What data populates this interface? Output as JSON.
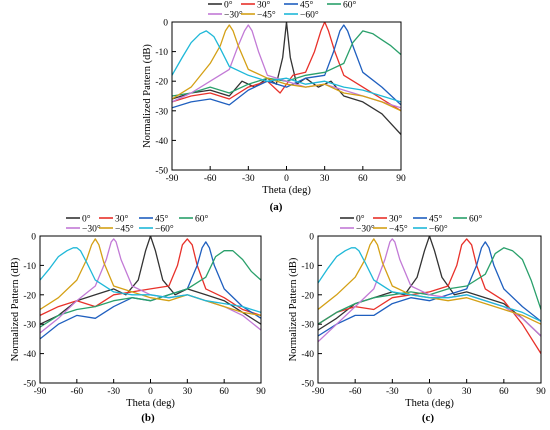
{
  "chart_data": [
    {
      "type": "line",
      "caption": "(a)",
      "xlabel": "Theta (deg)",
      "ylabel": "Normalized Pattern (dB)",
      "xlim": [
        -90,
        90
      ],
      "ylim": [
        -50,
        0
      ],
      "xticks": [
        -90,
        -60,
        -30,
        0,
        30,
        60,
        90
      ],
      "yticks": [
        0,
        -10,
        -20,
        -30,
        -40,
        -50
      ],
      "grid": false,
      "legend_position": "top-right",
      "series": [
        {
          "name": "0°",
          "color": "#333333",
          "x": [
            -90,
            -75,
            -60,
            -45,
            -35,
            -25,
            -15,
            -8,
            -3,
            0,
            3,
            8,
            15,
            25,
            35,
            45,
            60,
            75,
            90
          ],
          "y": [
            -26,
            -24,
            -23,
            -25,
            -20,
            -22,
            -19,
            -21,
            -12,
            0,
            -12,
            -21,
            -19,
            -22,
            -20,
            -25,
            -27,
            -31,
            -38
          ]
        },
        {
          "name": "30°",
          "color": "#e8312a",
          "x": [
            -90,
            -75,
            -60,
            -45,
            -30,
            -15,
            -5,
            5,
            15,
            22,
            27,
            30,
            33,
            38,
            45,
            60,
            75,
            90
          ],
          "y": [
            -27,
            -25,
            -24,
            -26,
            -22,
            -20,
            -24,
            -18,
            -17,
            -10,
            -3,
            0,
            -3,
            -10,
            -18,
            -22,
            -26,
            -30
          ]
        },
        {
          "name": "45°",
          "color": "#1f5fbf",
          "x": [
            -90,
            -75,
            -60,
            -45,
            -30,
            -15,
            0,
            15,
            30,
            37,
            42,
            45,
            48,
            53,
            60,
            75,
            90
          ],
          "y": [
            -29,
            -27,
            -26,
            -28,
            -23,
            -20,
            -22,
            -19,
            -18,
            -10,
            -3,
            -1,
            -3,
            -9,
            -17,
            -22,
            -28
          ]
        },
        {
          "name": "60°",
          "color": "#2aa06b",
          "x": [
            -90,
            -75,
            -60,
            -45,
            -30,
            -15,
            0,
            15,
            30,
            45,
            52,
            60,
            68,
            75,
            82,
            90
          ],
          "y": [
            -25,
            -24,
            -22,
            -24,
            -21,
            -19,
            -20,
            -18,
            -17,
            -14,
            -7,
            -3,
            -4,
            -6,
            -8,
            -11
          ]
        },
        {
          "name": "−30°",
          "color": "#c27ad6",
          "x": [
            -90,
            -75,
            -60,
            -45,
            -38,
            -33,
            -30,
            -27,
            -22,
            -15,
            0,
            15,
            30,
            45,
            60,
            75,
            90
          ],
          "y": [
            -27,
            -24,
            -20,
            -16,
            -8,
            -3,
            -1,
            -3,
            -10,
            -18,
            -20,
            -22,
            -21,
            -23,
            -25,
            -27,
            -29
          ]
        },
        {
          "name": "−45°",
          "color": "#d4a015",
          "x": [
            -90,
            -75,
            -60,
            -52,
            -48,
            -45,
            -42,
            -38,
            -30,
            -15,
            0,
            15,
            30,
            45,
            60,
            75,
            90
          ],
          "y": [
            -26,
            -22,
            -14,
            -8,
            -3,
            -1,
            -3,
            -8,
            -16,
            -19,
            -21,
            -22,
            -21,
            -24,
            -25,
            -27,
            -30
          ]
        },
        {
          "name": "−60°",
          "color": "#1fb8d8",
          "x": [
            -90,
            -82,
            -75,
            -68,
            -63,
            -60,
            -57,
            -52,
            -45,
            -30,
            -15,
            0,
            15,
            30,
            45,
            60,
            75,
            90
          ],
          "y": [
            -18,
            -12,
            -7,
            -4,
            -3,
            -4,
            -5,
            -9,
            -15,
            -18,
            -20,
            -19,
            -21,
            -20,
            -22,
            -23,
            -25,
            -27
          ]
        }
      ]
    },
    {
      "type": "line",
      "caption": "(b)",
      "xlabel": "Theta (deg)",
      "ylabel": "Normalized Pattern (dB)",
      "xlim": [
        -90,
        90
      ],
      "ylim": [
        -50,
        0
      ],
      "xticks": [
        -90,
        -60,
        -30,
        0,
        30,
        60,
        90
      ],
      "yticks": [
        0,
        -10,
        -20,
        -30,
        -40,
        -50
      ],
      "grid": false,
      "legend_position": "top-right",
      "series": [
        {
          "name": "0°",
          "color": "#333333",
          "x": [
            -90,
            -75,
            -60,
            -45,
            -30,
            -20,
            -10,
            -4,
            0,
            4,
            10,
            20,
            30,
            45,
            60,
            75,
            90
          ],
          "y": [
            -30,
            -27,
            -22,
            -20,
            -18,
            -20,
            -15,
            -5,
            0,
            -5,
            -15,
            -20,
            -18,
            -20,
            -22,
            -26,
            -30
          ]
        },
        {
          "name": "30°",
          "color": "#e8312a",
          "x": [
            -90,
            -75,
            -60,
            -45,
            -30,
            -15,
            0,
            15,
            22,
            26,
            30,
            34,
            38,
            45,
            60,
            75,
            90
          ],
          "y": [
            -27,
            -24,
            -22,
            -24,
            -20,
            -19,
            -18,
            -17,
            -10,
            -3,
            -1,
            -3,
            -10,
            -18,
            -21,
            -25,
            -27
          ]
        },
        {
          "name": "45°",
          "color": "#1f5fbf",
          "x": [
            -90,
            -75,
            -60,
            -45,
            -30,
            -15,
            0,
            15,
            30,
            38,
            42,
            45,
            48,
            52,
            60,
            75,
            90
          ],
          "y": [
            -35,
            -30,
            -27,
            -28,
            -24,
            -21,
            -22,
            -20,
            -18,
            -10,
            -4,
            -2,
            -4,
            -10,
            -18,
            -24,
            -28
          ]
        },
        {
          "name": "60°",
          "color": "#2aa06b",
          "x": [
            -90,
            -75,
            -60,
            -45,
            -30,
            -15,
            0,
            15,
            30,
            45,
            53,
            60,
            67,
            75,
            82,
            90
          ],
          "y": [
            -31,
            -27,
            -25,
            -24,
            -22,
            -21,
            -22,
            -20,
            -18,
            -14,
            -7,
            -5,
            -5,
            -8,
            -12,
            -15
          ]
        },
        {
          "name": "−30°",
          "color": "#c27ad6",
          "x": [
            -90,
            -75,
            -60,
            -45,
            -36,
            -32,
            -30,
            -28,
            -24,
            -15,
            0,
            15,
            30,
            45,
            60,
            75,
            90
          ],
          "y": [
            -33,
            -28,
            -22,
            -17,
            -8,
            -2,
            -1,
            -2,
            -8,
            -17,
            -20,
            -21,
            -20,
            -22,
            -24,
            -27,
            -32
          ]
        },
        {
          "name": "−45°",
          "color": "#d4a015",
          "x": [
            -90,
            -75,
            -60,
            -52,
            -48,
            -45,
            -42,
            -38,
            -30,
            -15,
            0,
            15,
            30,
            45,
            60,
            75,
            90
          ],
          "y": [
            -25,
            -21,
            -15,
            -8,
            -3,
            -1,
            -3,
            -9,
            -17,
            -19,
            -21,
            -22,
            -20,
            -22,
            -24,
            -26,
            -27
          ]
        },
        {
          "name": "−60°",
          "color": "#1fb8d8",
          "x": [
            -90,
            -82,
            -75,
            -68,
            -63,
            -60,
            -57,
            -52,
            -45,
            -30,
            -15,
            0,
            15,
            30,
            45,
            60,
            75,
            90
          ],
          "y": [
            -15,
            -11,
            -7,
            -5,
            -4,
            -4,
            -5,
            -9,
            -15,
            -19,
            -20,
            -20,
            -21,
            -20,
            -22,
            -23,
            -24,
            -26
          ]
        }
      ]
    },
    {
      "type": "line",
      "caption": "(c)",
      "xlabel": "Theta (deg)",
      "ylabel": "Normalized Pattern (dB)",
      "xlim": [
        -90,
        90
      ],
      "ylim": [
        -50,
        0
      ],
      "xticks": [
        -90,
        -60,
        -30,
        0,
        30,
        60,
        90
      ],
      "yticks": [
        0,
        -10,
        -20,
        -30,
        -40,
        -50
      ],
      "grid": false,
      "legend_position": "top-right",
      "series": [
        {
          "name": "0°",
          "color": "#333333",
          "x": [
            -90,
            -75,
            -60,
            -45,
            -30,
            -20,
            -10,
            -4,
            0,
            4,
            10,
            20,
            30,
            45,
            60,
            75,
            90
          ],
          "y": [
            -32,
            -28,
            -23,
            -21,
            -19,
            -20,
            -14,
            -5,
            0,
            -5,
            -14,
            -20,
            -19,
            -21,
            -23,
            -28,
            -34
          ]
        },
        {
          "name": "30°",
          "color": "#e8312a",
          "x": [
            -90,
            -75,
            -60,
            -45,
            -30,
            -15,
            0,
            15,
            22,
            26,
            30,
            34,
            38,
            45,
            60,
            75,
            90
          ],
          "y": [
            -30,
            -26,
            -24,
            -25,
            -21,
            -20,
            -19,
            -17,
            -10,
            -3,
            -1,
            -3,
            -10,
            -18,
            -22,
            -30,
            -40
          ]
        },
        {
          "name": "45°",
          "color": "#1f5fbf",
          "x": [
            -90,
            -75,
            -60,
            -45,
            -30,
            -15,
            0,
            15,
            30,
            38,
            42,
            45,
            48,
            52,
            60,
            75,
            90
          ],
          "y": [
            -34,
            -30,
            -27,
            -27,
            -23,
            -21,
            -22,
            -20,
            -18,
            -10,
            -4,
            -2,
            -4,
            -10,
            -18,
            -24,
            -29
          ]
        },
        {
          "name": "60°",
          "color": "#2aa06b",
          "x": [
            -90,
            -75,
            -60,
            -45,
            -30,
            -15,
            0,
            15,
            30,
            45,
            53,
            60,
            67,
            75,
            82,
            90
          ],
          "y": [
            -30,
            -26,
            -23,
            -21,
            -20,
            -19,
            -20,
            -18,
            -17,
            -13,
            -6,
            -4,
            -5,
            -8,
            -15,
            -25
          ]
        },
        {
          "name": "−30°",
          "color": "#c27ad6",
          "x": [
            -90,
            -75,
            -60,
            -45,
            -36,
            -32,
            -30,
            -28,
            -24,
            -15,
            0,
            15,
            30,
            45,
            60,
            75,
            90
          ],
          "y": [
            -36,
            -30,
            -24,
            -18,
            -8,
            -2,
            -1,
            -2,
            -8,
            -17,
            -20,
            -21,
            -20,
            -22,
            -24,
            -28,
            -34
          ]
        },
        {
          "name": "−45°",
          "color": "#d4a015",
          "x": [
            -90,
            -75,
            -60,
            -52,
            -48,
            -45,
            -42,
            -38,
            -30,
            -15,
            0,
            15,
            30,
            45,
            60,
            75,
            90
          ],
          "y": [
            -25,
            -20,
            -14,
            -8,
            -3,
            -1,
            -3,
            -9,
            -17,
            -20,
            -21,
            -22,
            -21,
            -23,
            -25,
            -27,
            -30
          ]
        },
        {
          "name": "−60°",
          "color": "#1fb8d8",
          "x": [
            -90,
            -82,
            -75,
            -68,
            -63,
            -60,
            -57,
            -52,
            -45,
            -30,
            -15,
            0,
            15,
            30,
            45,
            60,
            75,
            90
          ],
          "y": [
            -16,
            -11,
            -7,
            -5,
            -4,
            -4,
            -5,
            -9,
            -15,
            -19,
            -20,
            -21,
            -21,
            -20,
            -22,
            -24,
            -26,
            -29
          ]
        }
      ]
    }
  ]
}
